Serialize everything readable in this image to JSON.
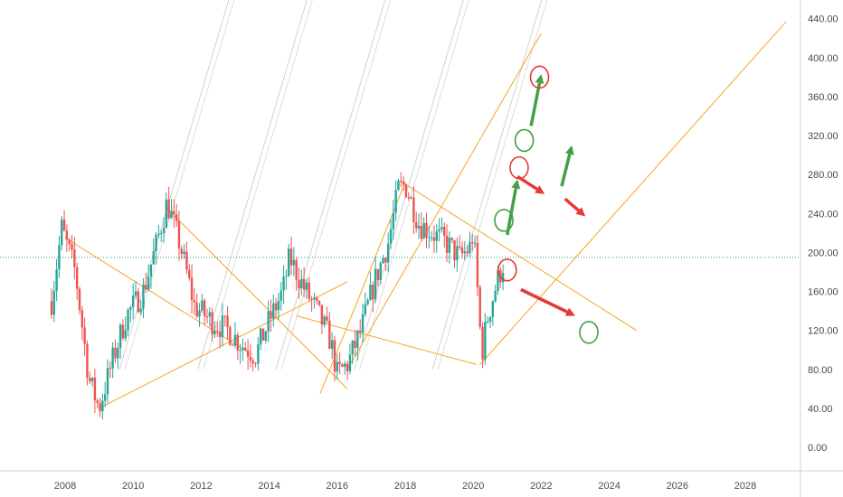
{
  "chart_data": {
    "type": "candlestick",
    "title": "",
    "xlabel": "",
    "ylabel": "",
    "y_ticks": [
      "0.00",
      "40.00",
      "80.00",
      "120.00",
      "160.00",
      "200.00",
      "240.00",
      "280.00",
      "320.00",
      "360.00",
      "400.00",
      "440.00"
    ],
    "x_ticks": [
      "2008",
      "2010",
      "2012",
      "2014",
      "2016",
      "2018",
      "2020",
      "2022",
      "2024",
      "2026",
      "2028"
    ],
    "ylim": [
      -25,
      458
    ],
    "xlim": [
      2007.0,
      2029.9
    ],
    "current_price_line": 195,
    "grid": false,
    "legend": "none",
    "colors": {
      "up": "#26a69a",
      "down": "#ef5350",
      "trendline": "#f5a623",
      "resistance_band": "#ef5350",
      "mid_band": "#f7e27a",
      "support_band": "#4caf80",
      "arrow_up": "#43a047",
      "arrow_down": "#e53935",
      "circle_green": "#43a047",
      "circle_red": "#e53935",
      "price_line": "#26a69a"
    },
    "anchors": [
      [
        2007.6,
        150
      ],
      [
        2007.9,
        225
      ],
      [
        2008.3,
        180
      ],
      [
        2008.7,
        70
      ],
      [
        2009.0,
        40
      ],
      [
        2009.4,
        90
      ],
      [
        2009.8,
        135
      ],
      [
        2010.3,
        160
      ],
      [
        2010.7,
        210
      ],
      [
        2011.0,
        252
      ],
      [
        2011.4,
        205
      ],
      [
        2011.8,
        145
      ],
      [
        2012.3,
        130
      ],
      [
        2012.8,
        120
      ],
      [
        2013.2,
        105
      ],
      [
        2013.6,
        95
      ],
      [
        2014.0,
        130
      ],
      [
        2014.4,
        160
      ],
      [
        2014.6,
        195
      ],
      [
        2015.0,
        165
      ],
      [
        2015.4,
        140
      ],
      [
        2015.8,
        110
      ],
      [
        2016.0,
        75
      ],
      [
        2016.3,
        85
      ],
      [
        2016.7,
        120
      ],
      [
        2017.1,
        170
      ],
      [
        2017.5,
        210
      ],
      [
        2017.8,
        265
      ],
      [
        2018.0,
        270
      ],
      [
        2018.4,
        230
      ],
      [
        2018.8,
        220
      ],
      [
        2019.2,
        210
      ],
      [
        2019.6,
        195
      ],
      [
        2019.9,
        205
      ],
      [
        2020.0,
        220
      ],
      [
        2020.1,
        175
      ],
      [
        2020.25,
        95
      ],
      [
        2020.4,
        130
      ],
      [
        2020.7,
        170
      ],
      [
        2020.95,
        195
      ]
    ]
  }
}
